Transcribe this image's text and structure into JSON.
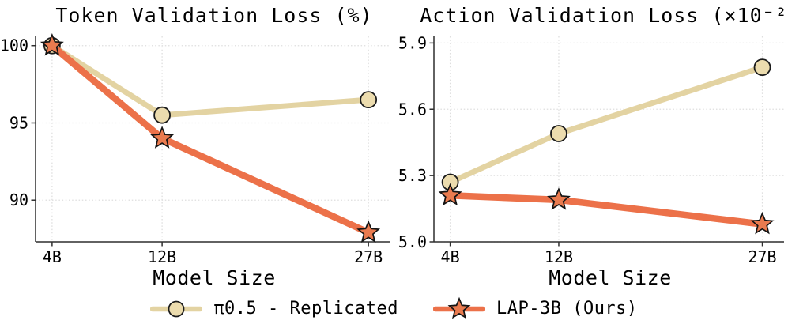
{
  "figure": {
    "background": "#ffffff",
    "text_color": "#000000",
    "grid_color": "#dedede",
    "spine_color": "#2f2f2f"
  },
  "chart_data": [
    {
      "type": "line",
      "title": "Token Validation Loss (%)",
      "xlabel": "Model Size",
      "x": [
        4,
        12,
        27
      ],
      "xtick_labels": [
        "4B",
        "12B",
        "27B"
      ],
      "xlim": [
        2.8,
        28.6
      ],
      "ylim": [
        87.3,
        100.6
      ],
      "yticks": [
        90,
        95,
        100
      ],
      "ytick_labels": [
        "90",
        "95",
        "100"
      ],
      "grid": true,
      "legend_position": "bottom-center-shared",
      "series": [
        {
          "name": "π0.5 - Replicated",
          "values": [
            100,
            95.5,
            96.5
          ],
          "line_color": "#e3d3a2",
          "line_width": 7,
          "marker": "circle",
          "marker_fill": "#ecdcae",
          "marker_edge": "#1c1c1c"
        },
        {
          "name": "LAP-3B (Ours)",
          "values": [
            100,
            94.0,
            87.9
          ],
          "line_color": "#ec7149",
          "line_width": 8.5,
          "marker": "star",
          "marker_fill": "#ea7b4f",
          "marker_edge": "#141414"
        }
      ]
    },
    {
      "type": "line",
      "title": "Action Validation Loss (×10⁻²)",
      "xlabel": "Model Size",
      "x": [
        4,
        12,
        27
      ],
      "xtick_labels": [
        "4B",
        "12B",
        "27B"
      ],
      "xlim": [
        2.8,
        28.6
      ],
      "ylim": [
        5.0,
        5.93
      ],
      "yticks": [
        5.0,
        5.3,
        5.6,
        5.9
      ],
      "ytick_labels": [
        "5.0",
        "5.3",
        "5.6",
        "5.9"
      ],
      "grid": true,
      "legend_position": "bottom-center-shared",
      "series": [
        {
          "name": "π0.5 - Replicated",
          "values": [
            5.27,
            5.49,
            5.79
          ],
          "line_color": "#e3d3a2",
          "line_width": 7,
          "marker": "circle",
          "marker_fill": "#ecdcae",
          "marker_edge": "#1c1c1c"
        },
        {
          "name": "LAP-3B (Ours)",
          "values": [
            5.21,
            5.19,
            5.08
          ],
          "line_color": "#ec7149",
          "line_width": 8.5,
          "marker": "star",
          "marker_fill": "#ea7b4f",
          "marker_edge": "#141414"
        }
      ]
    }
  ]
}
